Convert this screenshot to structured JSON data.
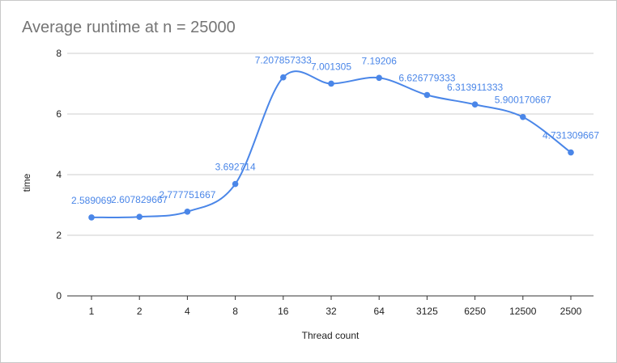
{
  "chart_data": {
    "type": "line",
    "title": "Average runtime at n = 25000",
    "xlabel": "Thread count",
    "ylabel": "time",
    "categories": [
      "1",
      "2",
      "4",
      "8",
      "16",
      "32",
      "64",
      "3125",
      "6250",
      "12500",
      "2500"
    ],
    "series": [
      {
        "values": [
          2.589069,
          2.607829667,
          2.777751667,
          3.692714,
          7.207857333,
          7.001305,
          7.19206,
          6.626779333,
          6.313911333,
          5.900170667,
          4.731309667
        ],
        "labels": [
          "2.589069",
          "2.607829667",
          "2.777751667",
          "3.692714",
          "7.207857333",
          "7.001305",
          "7.19206",
          "6.626779333",
          "6.313911333",
          "5.900170667",
          "4.731309667"
        ],
        "color": "#4a86e8"
      }
    ],
    "ylim": [
      0,
      8
    ],
    "yticks": [
      "0",
      "2",
      "4",
      "6",
      "8"
    ],
    "grid": true,
    "legend": "none"
  }
}
